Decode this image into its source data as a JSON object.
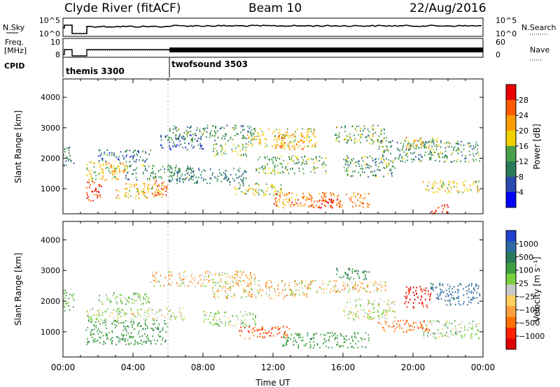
{
  "header": {
    "station": "Clyde River (fitACF)",
    "beam": "Beam 10",
    "date": "22/Aug/2016"
  },
  "ancillary": {
    "nsky_label": "N.Sky",
    "nsky_ticks": [
      "10^5",
      "10^0"
    ],
    "nsearch_label": "N.Search",
    "nsearch_ticks": [
      "10^5",
      "10^0"
    ],
    "freq_label_line1": "Freq.",
    "freq_label_line2": "[MHz]",
    "freq_ticks": [
      "10",
      "8"
    ],
    "nave_label": "Nave",
    "nave_ticks": [
      "60",
      "0"
    ],
    "cpid_label": "CPID",
    "cpid_modes": [
      {
        "name": "themis 3300",
        "start_hour": 0,
        "end_hour": 6
      },
      {
        "name": "twofsound 3503",
        "start_hour": 6,
        "end_hour": 24
      }
    ]
  },
  "chart_data": [
    {
      "type": "heatmap",
      "name": "power",
      "ylabel": "Slant Range [km]",
      "xlabel": "Time UT",
      "xlim_hours": [
        0,
        24
      ],
      "ylim_km": [
        180,
        4600
      ],
      "yticks": [
        1000,
        2000,
        3000,
        4000
      ],
      "xticks": [
        "00:00",
        "04:00",
        "08:00",
        "12:00",
        "16:00",
        "20:00",
        "00:00"
      ],
      "colorbar": {
        "label": "Power [dB]",
        "ticks": [
          "28",
          "24",
          "20",
          "16",
          "12",
          "8",
          "4"
        ],
        "colors": [
          "#e80000",
          "#ff5a00",
          "#ff9c00",
          "#f0d000",
          "#4aa04a",
          "#2a7a5a",
          "#2a4ab0",
          "#0000ff"
        ]
      },
      "regions": [
        {
          "t0": 0.0,
          "t1": 0.6,
          "r0": 1700,
          "r1": 2400,
          "value": 10
        },
        {
          "t0": 1.3,
          "t1": 2.2,
          "r0": 600,
          "r1": 1300,
          "value": 28
        },
        {
          "t0": 1.3,
          "t1": 3.3,
          "r0": 1300,
          "r1": 1900,
          "value": 18
        },
        {
          "t0": 2.6,
          "t1": 3.6,
          "r0": 1500,
          "r1": 1900,
          "value": 22
        },
        {
          "t0": 2.0,
          "t1": 5.0,
          "r0": 1900,
          "r1": 2300,
          "value": 8
        },
        {
          "t0": 3.0,
          "t1": 5.8,
          "r0": 700,
          "r1": 1200,
          "value": 20
        },
        {
          "t0": 5.0,
          "t1": 6.0,
          "r0": 800,
          "r1": 1300,
          "value": 26
        },
        {
          "t0": 3.5,
          "t1": 7.5,
          "r0": 1300,
          "r1": 1800,
          "value": 12
        },
        {
          "t0": 6.0,
          "t1": 10.5,
          "r0": 1200,
          "r1": 1700,
          "value": 10
        },
        {
          "t0": 6.0,
          "t1": 11.0,
          "r0": 2600,
          "r1": 3100,
          "value": 12
        },
        {
          "t0": 8.5,
          "t1": 10.5,
          "r0": 2100,
          "r1": 2500,
          "value": 14
        },
        {
          "t0": 9.5,
          "t1": 12.5,
          "r0": 800,
          "r1": 1200,
          "value": 16
        },
        {
          "t0": 10.5,
          "t1": 14.5,
          "r0": 2400,
          "r1": 3000,
          "value": 18
        },
        {
          "t0": 12.0,
          "t1": 13.8,
          "r0": 2300,
          "r1": 2800,
          "value": 22
        },
        {
          "t0": 11.0,
          "t1": 15.0,
          "r0": 1500,
          "r1": 2100,
          "value": 14
        },
        {
          "t0": 12.0,
          "t1": 17.5,
          "r0": 400,
          "r1": 900,
          "value": 24
        },
        {
          "t0": 14.0,
          "t1": 16.0,
          "r0": 400,
          "r1": 700,
          "value": 28
        },
        {
          "t0": 15.5,
          "t1": 18.5,
          "r0": 2500,
          "r1": 3100,
          "value": 14
        },
        {
          "t0": 16.0,
          "t1": 19.0,
          "r0": 1400,
          "r1": 2100,
          "value": 12
        },
        {
          "t0": 18.0,
          "t1": 23.8,
          "r0": 1900,
          "r1": 2600,
          "value": 12
        },
        {
          "t0": 19.5,
          "t1": 21.5,
          "r0": 2300,
          "r1": 2700,
          "value": 20
        },
        {
          "t0": 20.5,
          "t1": 23.8,
          "r0": 900,
          "r1": 1300,
          "value": 18
        },
        {
          "t0": 21.0,
          "t1": 22.0,
          "r0": 200,
          "r1": 500,
          "value": 28
        },
        {
          "t0": 5.5,
          "t1": 8.0,
          "r0": 2300,
          "r1": 2800,
          "value": 8
        }
      ]
    },
    {
      "type": "heatmap",
      "name": "velocity",
      "ylabel": "Slant Range [km]",
      "xlabel": "Time UT",
      "xlim_hours": [
        0,
        24
      ],
      "ylim_km": [
        180,
        4600
      ],
      "yticks": [
        1000,
        2000,
        3000,
        4000
      ],
      "xticks": [
        "00:00",
        "04:00",
        "08:00",
        "12:00",
        "16:00",
        "20:00",
        "00:00"
      ],
      "colorbar": {
        "label": "Velocity [m s⁻¹]",
        "ticks": [
          "1000",
          "500",
          "100",
          "25",
          "−25",
          "−100",
          "−500",
          "−1000"
        ],
        "colors": [
          "#2040d0",
          "#2a6aa0",
          "#2a7a5a",
          "#40a040",
          "#7cd040",
          "#c8c8c8",
          "#ffd060",
          "#ffa040",
          "#ff7000",
          "#ff2000",
          "#e00000"
        ]
      },
      "regions": [
        {
          "t0": 0.0,
          "t1": 0.6,
          "r0": 1700,
          "r1": 2400,
          "value": 300
        },
        {
          "t0": 1.3,
          "t1": 6.0,
          "r0": 600,
          "r1": 1400,
          "value": 400
        },
        {
          "t0": 1.3,
          "t1": 3.5,
          "r0": 1300,
          "r1": 1800,
          "value": 150
        },
        {
          "t0": 3.0,
          "t1": 7.0,
          "r0": 1400,
          "r1": 1800,
          "value": 100
        },
        {
          "t0": 2.0,
          "t1": 5.0,
          "r0": 1900,
          "r1": 2300,
          "value": 200
        },
        {
          "t0": 5.0,
          "t1": 11.0,
          "r0": 2500,
          "r1": 3000,
          "value": 0
        },
        {
          "t0": 8.5,
          "t1": 14.0,
          "r0": 2100,
          "r1": 2700,
          "value": 0
        },
        {
          "t0": 8.0,
          "t1": 11.0,
          "r0": 1200,
          "r1": 1700,
          "value": 150
        },
        {
          "t0": 10.0,
          "t1": 13.0,
          "r0": 800,
          "r1": 1200,
          "value": -200
        },
        {
          "t0": 12.5,
          "t1": 17.5,
          "r0": 500,
          "r1": 1000,
          "value": 400
        },
        {
          "t0": 15.5,
          "t1": 17.5,
          "r0": 2700,
          "r1": 3100,
          "value": 500
        },
        {
          "t0": 14.0,
          "t1": 18.5,
          "r0": 2300,
          "r1": 2700,
          "value": 0
        },
        {
          "t0": 16.0,
          "t1": 19.0,
          "r0": 1400,
          "r1": 2100,
          "value": 100
        },
        {
          "t0": 19.5,
          "t1": 21.0,
          "r0": 1800,
          "r1": 2500,
          "value": -500
        },
        {
          "t0": 21.0,
          "t1": 23.8,
          "r0": 1900,
          "r1": 2600,
          "value": 800
        },
        {
          "t0": 20.5,
          "t1": 23.8,
          "r0": 800,
          "r1": 1400,
          "value": 150
        },
        {
          "t0": 18.0,
          "t1": 21.0,
          "r0": 1000,
          "r1": 1400,
          "value": -150
        }
      ]
    }
  ]
}
